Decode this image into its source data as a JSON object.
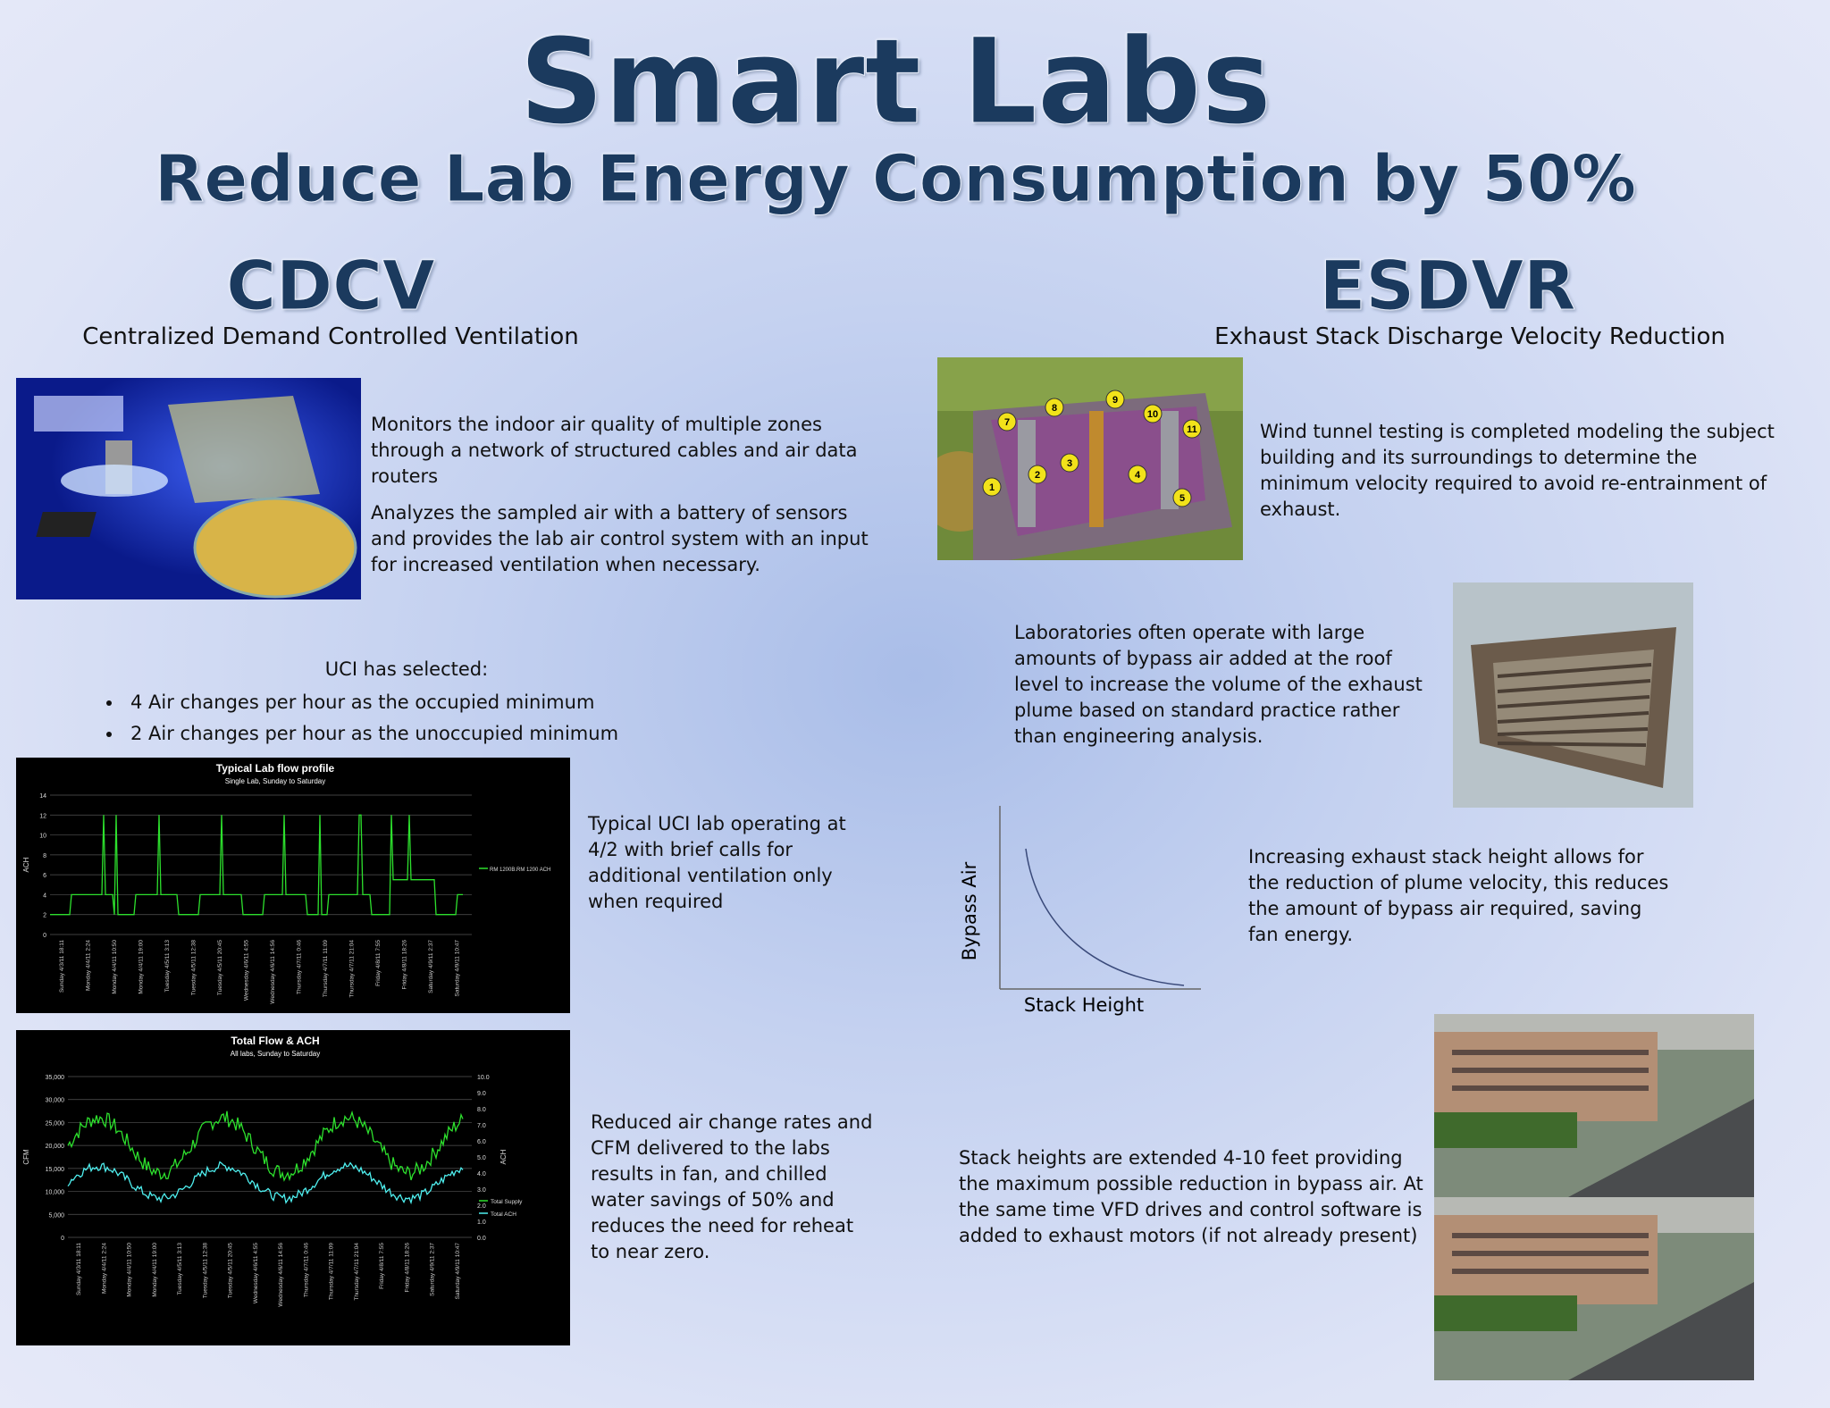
{
  "header": {
    "title": "Smart Labs",
    "subtitle": "Reduce Lab Energy Consumption by 50%"
  },
  "cdcv": {
    "heading": "CDCV",
    "subheading": "Centralized Demand Controlled Ventilation",
    "paragraphs": [
      "Monitors the indoor air quality of multiple zones through a network of structured cables and air data routers",
      "Analyzes the sampled air with a battery of sensors and provides the lab air control system with an input for increased ventilation when necessary."
    ],
    "selected": {
      "intro": "UCI has selected:",
      "items": [
        "4 Air changes per hour as the occupied minimum",
        "2 Air changes per hour as the unoccupied minimum"
      ]
    },
    "flow_profile_caption": "Typical UCI lab operating at 4/2 with brief calls for additional ventilation only when required",
    "total_flow_caption": "Reduced air change rates and CFM delivered to the labs results in fan, and chilled water savings of 50% and reduces the need for reheat to near zero."
  },
  "figures": {
    "flow_profile": {
      "title": "Typical Lab flow profile",
      "subtitle": "Single Lab, Sunday to Saturday",
      "y_label": "ACH",
      "yticks": [
        "0",
        "2",
        "4",
        "6",
        "8",
        "10",
        "12",
        "14"
      ],
      "legend": "RM 1200B.RM 1200 ACH",
      "xlabels": [
        "Sunday 4/3/11 18:11",
        "Monday 4/4/11 2:24",
        "Monday 4/4/11 10:50",
        "Monday 4/4/11 19:00",
        "Tuesday 4/5/11 3:13",
        "Tuesday 4/5/11 12:38",
        "Tuesday 4/5/11 20:45",
        "Wednesday 4/6/11 4:55",
        "Wednesday 4/6/11 14:56",
        "Thursday 4/7/11 0:46",
        "Thursday 4/7/11 11:09",
        "Thursday 4/7/11 21:04",
        "Friday 4/8/11 7:55",
        "Friday 4/8/11 18:26",
        "Saturday 4/9/11 2:37",
        "Saturday 4/9/11 10:47"
      ]
    },
    "total_flow": {
      "title": "Total Flow & ACH",
      "subtitle": "All labs, Sunday to Saturday",
      "y_label": "CFM",
      "y2_label": "ACH",
      "yticks": [
        "0",
        "5,000",
        "10,000",
        "15,000",
        "20,000",
        "25,000",
        "30,000",
        "35,000"
      ],
      "y2ticks": [
        "0.0",
        "1.0",
        "2.0",
        "3.0",
        "4.0",
        "5.0",
        "6.0",
        "7.0",
        "8.0",
        "9.0",
        "10.0"
      ],
      "legend": [
        "Total Supply",
        "Total ACH"
      ],
      "xlabels": [
        "Sunday 4/3/11 18:11",
        "Monday 4/4/11 2:24",
        "Monday 4/4/11 10:50",
        "Monday 4/4/11 19:00",
        "Tuesday 4/5/11 3:13",
        "Tuesday 4/5/11 12:38",
        "Tuesday 4/5/11 20:45",
        "Wednesday 4/6/11 4:55",
        "Wednesday 4/6/11 14:56",
        "Thursday 4/7/11 0:46",
        "Thursday 4/7/11 11:09",
        "Thursday 4/7/11 21:04",
        "Friday 4/8/11 7:55",
        "Friday 4/8/11 18:26",
        "Saturday 4/9/11 2:37",
        "Saturday 4/9/11 10:47"
      ]
    }
  },
  "esdvr": {
    "heading": "ESDVR",
    "subheading": "Exhaust Stack Discharge Velocity Reduction",
    "wind_tunnel_markers": [
      "1",
      "2",
      "3",
      "4",
      "5",
      "7",
      "8",
      "9",
      "10",
      "11"
    ],
    "wind_tunnel_text": "Wind tunnel testing is completed modeling the subject building and its surroundings to determine the minimum velocity required to avoid re-entrainment of exhaust.",
    "bypass_text": "Laboratories often operate with large amounts of bypass air added at the roof level to increase the volume of the exhaust plume based on standard practice rather than engineering analysis.",
    "graph": {
      "y_label": "Bypass Air",
      "x_label": "Stack Height"
    },
    "stack_height_text": "Increasing exhaust stack height allows for the reduction of plume velocity, this reduces the amount of bypass air required, saving fan energy.",
    "extension_text": "Stack heights are extended 4-10 feet providing the maximum possible reduction in bypass air. At the same time VFD drives and control software is added to exhaust motors (if not already present)"
  }
}
